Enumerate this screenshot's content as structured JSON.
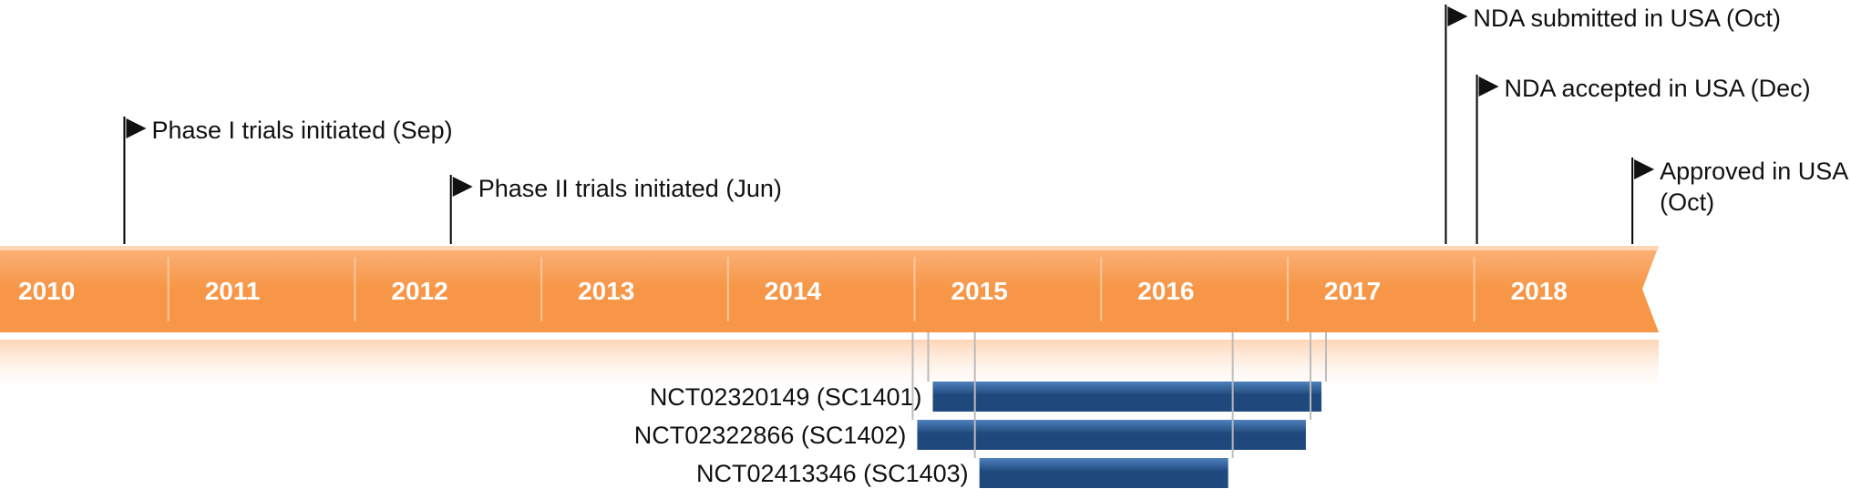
{
  "chart_data": {
    "type": "timeline",
    "years": [
      "2010",
      "2011",
      "2012",
      "2013",
      "2014",
      "2015",
      "2016",
      "2017",
      "2018"
    ],
    "milestones": [
      {
        "date": "2010-09",
        "lines": [
          "Phase I trials initiated (Sep)"
        ]
      },
      {
        "date": "2012-06",
        "lines": [
          "Phase II trials initiated (Jun)"
        ]
      },
      {
        "date": "2017-10",
        "lines": [
          "NDA submitted in USA (Oct)"
        ]
      },
      {
        "date": "2017-12",
        "lines": [
          "NDA accepted in USA (Dec)"
        ]
      },
      {
        "date": "2018-10",
        "lines": [
          "Approved in USA",
          "(Oct)"
        ]
      }
    ],
    "trials": [
      {
        "label": "NCT02320149 (SC1401)",
        "start": "2015-01",
        "end": "2017-02"
      },
      {
        "label": "NCT02322866 (SC1402)",
        "start": "2014-12",
        "end": "2017-01"
      },
      {
        "label": "NCT02413346 (SC1403)",
        "start": "2015-04",
        "end": "2016-08"
      }
    ],
    "colors": {
      "band": "#f79646",
      "band_light": "#fbb27a",
      "trial_bar": "#1f497d",
      "trial_bar_light": "#4f81bd",
      "year_text": "#ffffff"
    }
  }
}
